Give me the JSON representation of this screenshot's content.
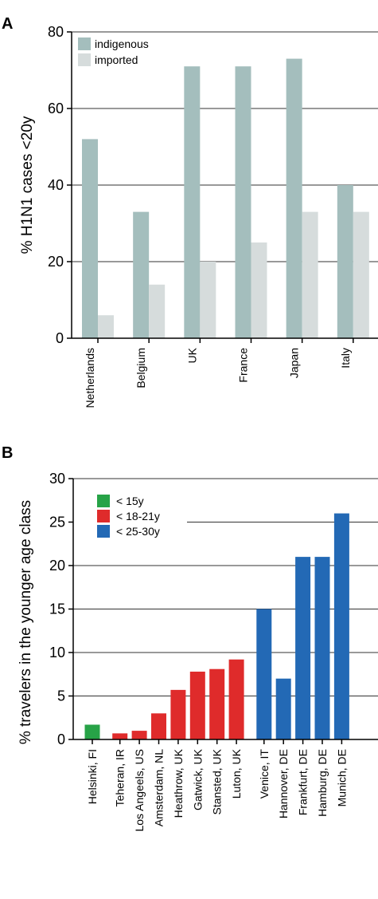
{
  "chart_data": [
    {
      "panel": "A",
      "type": "bar",
      "title": "",
      "xlabel": "",
      "ylabel": "% H1N1 cases <20y",
      "ylim": [
        0,
        80
      ],
      "yticks": [
        "0",
        "20",
        "40",
        "60",
        "80"
      ],
      "grid": true,
      "legend": "top-left",
      "categories": [
        "Netherlands",
        "Belgium",
        "UK",
        "France",
        "Japan",
        "Italy"
      ],
      "series": [
        {
          "name": "indigenous",
          "color": "#a4bebd",
          "values": [
            52,
            33,
            71,
            71,
            73,
            40
          ]
        },
        {
          "name": "imported",
          "color": "#d6dcdc",
          "values": [
            6,
            14,
            20,
            25,
            33,
            33
          ]
        }
      ]
    },
    {
      "panel": "B",
      "type": "bar",
      "title": "",
      "xlabel": "",
      "ylabel": "% travelers in the younger age class",
      "ylim": [
        0,
        30
      ],
      "yticks": [
        "0",
        "5",
        "10",
        "15",
        "20",
        "25",
        "30"
      ],
      "grid": true,
      "legend": "top-left",
      "categories": [
        "Helsinki, FI",
        "Teheran, IR",
        "Los Angeels, US",
        "Amsterdam, NL",
        "Heathrow, UK",
        "Gatwick, UK",
        "Stansted, UK",
        "Luton, UK",
        "Venice, IT",
        "Hannover, DE",
        "Frankfurt, DE",
        "Hamburg, DE",
        "Munich, DE"
      ],
      "values": [
        1.7,
        0.7,
        1.0,
        3.0,
        5.7,
        7.8,
        8.1,
        9.2,
        15.0,
        7.0,
        21.0,
        21.0,
        26.0
      ],
      "bar_groups": [
        0,
        1,
        1,
        1,
        1,
        1,
        1,
        1,
        2,
        2,
        2,
        2,
        2
      ],
      "groups": [
        {
          "name": "< 15y",
          "color": "#27a347"
        },
        {
          "name": "< 18-21y",
          "color": "#df2b2b"
        },
        {
          "name": "< 25-30y",
          "color": "#2369b5"
        }
      ]
    }
  ]
}
